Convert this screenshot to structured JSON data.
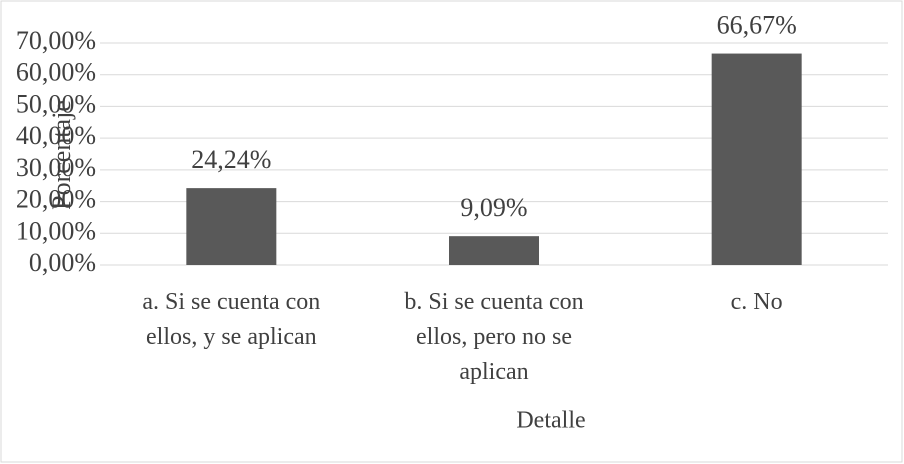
{
  "chart_data": {
    "type": "bar",
    "categories": [
      "a. Si se cuenta con ellos, y se aplican",
      "b. Si se cuenta con ellos, pero no se aplican",
      "c. No"
    ],
    "values": [
      24.24,
      9.09,
      66.67
    ],
    "value_labels": [
      "24,24%",
      "9,09%",
      "66,67%"
    ],
    "color": "#595959",
    "xlabel": "Detalle",
    "ylabel": "Porcentaje",
    "ylim": [
      0,
      70
    ],
    "yticks": [
      {
        "value": 0,
        "label": "0,00%"
      },
      {
        "value": 10,
        "label": "10,00%"
      },
      {
        "value": 20,
        "label": "20,00%"
      },
      {
        "value": 30,
        "label": "30,00%"
      },
      {
        "value": 40,
        "label": "40,00%"
      },
      {
        "value": 50,
        "label": "50,00%"
      },
      {
        "value": 60,
        "label": "60,00%"
      },
      {
        "value": 70,
        "label": "70,00%"
      }
    ],
    "grid": true
  }
}
